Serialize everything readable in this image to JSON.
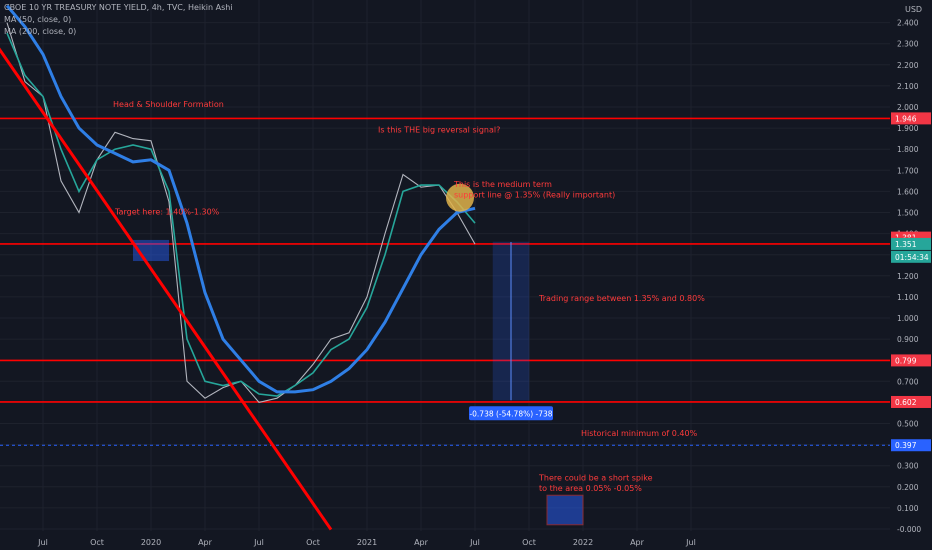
{
  "header": {
    "line1": "CBOE 10 YR TREASURY NOTE YIELD, 4h, TVC, Heikin Ashi",
    "line2": "MA (50, close, 0)",
    "line3": "MA (200, close, 0)"
  },
  "chart_data": {
    "type": "line",
    "currency": "USD",
    "ylim": [
      -0.05,
      2.5
    ],
    "y_ticks": [
      "-0.000",
      "0.100",
      "0.200",
      "0.300",
      "0.400",
      "0.500",
      "0.600",
      "0.700",
      "0.800",
      "0.900",
      "1.000",
      "1.100",
      "1.200",
      "1.300",
      "1.400",
      "1.500",
      "1.600",
      "1.700",
      "1.800",
      "1.900",
      "2.000",
      "2.100",
      "2.200",
      "2.300",
      "2.400"
    ],
    "x_ticks": [
      "Jul",
      "Oct",
      "2020",
      "Apr",
      "Jul",
      "Oct",
      "2021",
      "Apr",
      "Jul",
      "Oct",
      "2022",
      "Apr",
      "Jul"
    ],
    "price_labels": [
      {
        "text": "1.946",
        "value": 1.946,
        "color": "#f23645"
      },
      {
        "text": "1.381",
        "value": 1.381,
        "color": "#f23645"
      },
      {
        "text": "1.354",
        "value": 1.354,
        "color": "#f23645"
      },
      {
        "text": "1.351",
        "value": 1.351,
        "color": "#26a69a"
      },
      {
        "text": "01:54:34",
        "value": 1.29,
        "color": "#26a69a"
      },
      {
        "text": "0.799",
        "value": 0.799,
        "color": "#f23645"
      },
      {
        "text": "0.602",
        "value": 0.602,
        "color": "#f23645"
      },
      {
        "text": "0.397",
        "value": 0.397,
        "color": "#2962ff"
      }
    ],
    "horizontal_lines": [
      {
        "value": 1.946,
        "color": "#ff0000"
      },
      {
        "value": 1.351,
        "color": "#ff0000"
      },
      {
        "value": 0.799,
        "color": "#ff0000"
      },
      {
        "value": 0.602,
        "color": "#ff0000"
      },
      {
        "value": 0.397,
        "color": "#2962ff",
        "dashed": true
      }
    ],
    "series": [
      {
        "color": "#b2b5be",
        "points": [
          [
            "2019-05",
            2.4
          ],
          [
            "2019-06",
            2.12
          ],
          [
            "2019-07",
            2.05
          ],
          [
            "2019-08",
            1.65
          ],
          [
            "2019-09",
            1.5
          ],
          [
            "2019-10",
            1.75
          ],
          [
            "2019-11",
            1.88
          ],
          [
            "2019-12",
            1.85
          ],
          [
            "2020-01",
            1.84
          ],
          [
            "2020-02",
            1.55
          ],
          [
            "2020-03",
            0.7
          ],
          [
            "2020-04",
            0.62
          ],
          [
            "2020-05",
            0.67
          ],
          [
            "2020-06",
            0.7
          ],
          [
            "2020-07",
            0.6
          ],
          [
            "2020-08",
            0.62
          ],
          [
            "2020-09",
            0.68
          ],
          [
            "2020-10",
            0.78
          ],
          [
            "2020-11",
            0.9
          ],
          [
            "2020-12",
            0.93
          ],
          [
            "2021-01",
            1.1
          ],
          [
            "2021-02",
            1.4
          ],
          [
            "2021-03",
            1.68
          ],
          [
            "2021-04",
            1.62
          ],
          [
            "2021-05",
            1.63
          ],
          [
            "2021-06",
            1.5
          ],
          [
            "2021-07",
            1.35
          ]
        ]
      },
      {
        "name": "MA (50, close, 0)",
        "color": "#26a69a",
        "points": [
          [
            "2019-05",
            2.35
          ],
          [
            "2019-06",
            2.15
          ],
          [
            "2019-07",
            2.05
          ],
          [
            "2019-08",
            1.8
          ],
          [
            "2019-09",
            1.6
          ],
          [
            "2019-10",
            1.75
          ],
          [
            "2019-11",
            1.8
          ],
          [
            "2019-12",
            1.82
          ],
          [
            "2020-01",
            1.8
          ],
          [
            "2020-02",
            1.6
          ],
          [
            "2020-03",
            0.9
          ],
          [
            "2020-04",
            0.7
          ],
          [
            "2020-05",
            0.68
          ],
          [
            "2020-06",
            0.7
          ],
          [
            "2020-07",
            0.64
          ],
          [
            "2020-08",
            0.63
          ],
          [
            "2020-09",
            0.68
          ],
          [
            "2020-10",
            0.74
          ],
          [
            "2020-11",
            0.85
          ],
          [
            "2020-12",
            0.9
          ],
          [
            "2021-01",
            1.05
          ],
          [
            "2021-02",
            1.3
          ],
          [
            "2021-03",
            1.6
          ],
          [
            "2021-04",
            1.63
          ],
          [
            "2021-05",
            1.63
          ],
          [
            "2021-06",
            1.55
          ],
          [
            "2021-07",
            1.45
          ]
        ]
      },
      {
        "name": "MA (200, close, 0)",
        "color": "#2f7fe6",
        "points": [
          [
            "2019-05",
            2.48
          ],
          [
            "2019-06",
            2.38
          ],
          [
            "2019-07",
            2.25
          ],
          [
            "2019-08",
            2.05
          ],
          [
            "2019-09",
            1.9
          ],
          [
            "2019-10",
            1.82
          ],
          [
            "2019-11",
            1.78
          ],
          [
            "2019-12",
            1.74
          ],
          [
            "2020-01",
            1.75
          ],
          [
            "2020-02",
            1.7
          ],
          [
            "2020-03",
            1.45
          ],
          [
            "2020-04",
            1.12
          ],
          [
            "2020-05",
            0.9
          ],
          [
            "2020-06",
            0.8
          ],
          [
            "2020-07",
            0.7
          ],
          [
            "2020-08",
            0.65
          ],
          [
            "2020-09",
            0.65
          ],
          [
            "2020-10",
            0.66
          ],
          [
            "2020-11",
            0.7
          ],
          [
            "2020-12",
            0.76
          ],
          [
            "2021-01",
            0.85
          ],
          [
            "2021-02",
            0.98
          ],
          [
            "2021-03",
            1.14
          ],
          [
            "2021-04",
            1.3
          ],
          [
            "2021-05",
            1.42
          ],
          [
            "2021-06",
            1.5
          ],
          [
            "2021-07",
            1.52
          ]
        ]
      }
    ],
    "drawings": {
      "trendline": {
        "from": [
          "2019-05",
          2.4
        ],
        "to": [
          "2020-10",
          -0.05
        ],
        "color": "#ff0000"
      },
      "target_box": {
        "from": [
          "2019-12",
          1.37
        ],
        "to": [
          "2020-02",
          1.27
        ],
        "color": "#2962ff"
      },
      "measure": {
        "from": [
          "2021-08",
          1.36
        ],
        "to": [
          "2021-10",
          0.61
        ],
        "label": "-0.738 (-54.78%) -738"
      },
      "spike_box": {
        "from": [
          "2021-11",
          0.16
        ],
        "to": [
          "2022-01",
          0.02
        ],
        "color": "#2962ff"
      },
      "circle": {
        "at": [
          "2021-06",
          1.57
        ],
        "color": "#e0b34a"
      }
    },
    "annotations": [
      {
        "text": "Head & Shoulder Formation",
        "at": [
          "2019-11",
          2.0
        ]
      },
      {
        "text": "Target here: 1.40%-1.30%",
        "at": [
          "2019-12",
          1.49
        ]
      },
      {
        "text": "Is this THE big reversal signal?",
        "at": [
          "2021-03",
          1.88
        ]
      },
      {
        "text": "This is the medium term",
        "at": [
          "2021-06",
          1.62
        ]
      },
      {
        "text": "support line @ 1.35% (Really important)",
        "at": [
          "2021-06",
          1.57
        ]
      },
      {
        "text": "Trading range between 1.35% and 0.80%",
        "at": [
          "2021-12",
          1.08
        ]
      },
      {
        "text": "Historical minimum of 0.40%",
        "at": [
          "2022-02",
          0.44
        ]
      },
      {
        "text": "There could be a short spike",
        "at": [
          "2021-10",
          0.23
        ]
      },
      {
        "text": "to the area 0.05% -0.05%",
        "at": [
          "2021-10",
          0.18
        ]
      }
    ]
  }
}
